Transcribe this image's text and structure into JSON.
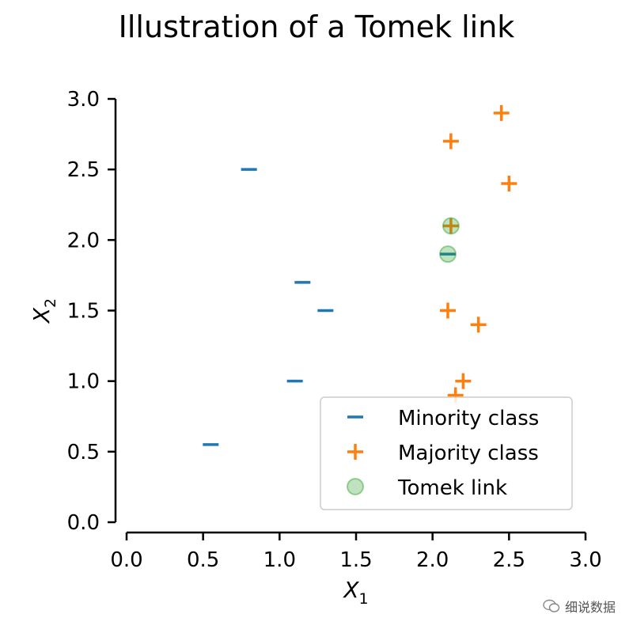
{
  "chart_data": {
    "type": "scatter",
    "title": "Illustration of a Tomek link",
    "xlim": [
      0.0,
      3.0
    ],
    "ylim": [
      0.0,
      3.0
    ],
    "x_ticks": [
      0.0,
      0.5,
      1.0,
      1.5,
      2.0,
      2.5,
      3.0
    ],
    "y_ticks": [
      0.0,
      0.5,
      1.0,
      1.5,
      2.0,
      2.5,
      3.0
    ],
    "x_tick_labels": [
      "0.0",
      "0.5",
      "1.0",
      "1.5",
      "2.0",
      "2.5",
      "3.0"
    ],
    "y_tick_labels": [
      "0.0",
      "0.5",
      "1.0",
      "1.5",
      "2.0",
      "2.5",
      "3.0"
    ],
    "xlabel": "X",
    "xlabel_sub": "1",
    "ylabel": "X",
    "ylabel_sub": "2",
    "grid": false,
    "legend_position": "lower-right",
    "series": [
      {
        "name": "Minority class",
        "marker": "minus",
        "color": "#1f77b4",
        "points": [
          [
            0.55,
            0.55
          ],
          [
            0.8,
            2.5
          ],
          [
            1.1,
            1.0
          ],
          [
            1.15,
            1.7
          ],
          [
            1.3,
            1.5
          ],
          [
            2.1,
            1.9
          ]
        ]
      },
      {
        "name": "Majority class",
        "marker": "plus",
        "color": "#ff7f0e",
        "points": [
          [
            2.12,
            2.1
          ],
          [
            2.12,
            2.7
          ],
          [
            2.45,
            2.9
          ],
          [
            2.5,
            2.4
          ],
          [
            2.1,
            1.5
          ],
          [
            2.3,
            1.4
          ],
          [
            2.2,
            1.0
          ],
          [
            2.15,
            0.9
          ]
        ]
      },
      {
        "name": "Tomek link",
        "marker": "circle",
        "color": "#2ca02c",
        "points": [
          [
            2.12,
            2.1
          ],
          [
            2.1,
            1.9
          ]
        ]
      }
    ]
  },
  "watermark": {
    "text": "细说数据",
    "icon": "wechat-icon"
  }
}
